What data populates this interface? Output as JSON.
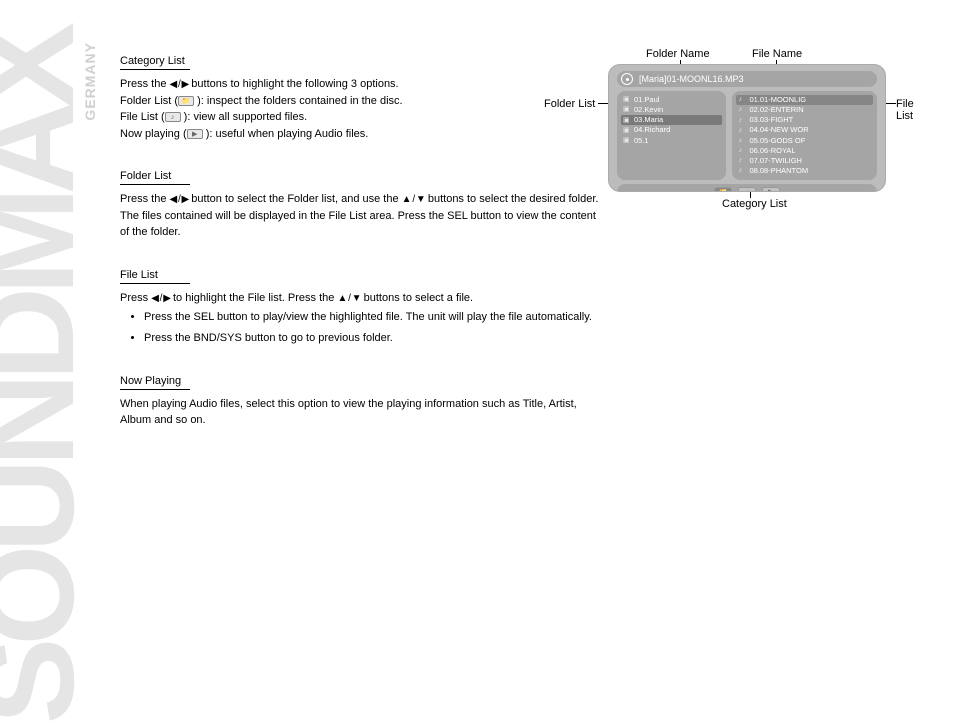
{
  "watermark": {
    "brand": "SOUNDMAX",
    "country": "GERMANY"
  },
  "sections": {
    "category": {
      "title": "Category List",
      "line1_pre": "Press the ",
      "line1_post": " buttons to highlight the following 3 options.",
      "opt1_label": "Folder List (",
      "opt1_post": " ): inspect the folders contained in the disc.",
      "opt2_label": "File List (",
      "opt2_post": " ): view all supported files.",
      "opt3_label": "Now playing (",
      "opt3_post": " ): useful when playing Audio files."
    },
    "folder": {
      "title": "Folder List",
      "pre": "Press the ",
      "mid": " button to select the Folder list, and use the ",
      "post": " buttons to select the desired folder. The files contained will be displayed in the File List area. Press the SEL button to view the content of the folder."
    },
    "file": {
      "title": "File List",
      "pre": "Press ",
      "mid": " to highlight the File list. Press the ",
      "post": " buttons to select a file.",
      "b1": "Press the SEL button to play/view the highlighted file. The unit will play the file automatically.",
      "b2": "Press the BND/SYS button to go to previous folder."
    },
    "now": {
      "title": "Now Playing",
      "body": "When playing Audio files, select this option to view the playing information such as Title, Artist, Album and so on."
    },
    "arrows_lr": "◀ / ▶",
    "arrows_ud": "▲ / ▼"
  },
  "figure": {
    "labels": {
      "folderName": "Folder Name",
      "fileName": "File Name",
      "folderList": "Folder List",
      "fileList": "File List",
      "categoryList": "Category List"
    },
    "title": "[Maria]01-MOONL16.MP3",
    "folders": [
      "01.Paul",
      "02.Kevin",
      "03.Maria",
      "04.Richard",
      "05.1"
    ],
    "selectedFolderIndex": 2,
    "files": [
      "01.01-MOONLIG",
      "02.02-ENTERIN",
      "03.03-FIGHT",
      "04.04-NEW WOR",
      "05.05-GODS OF",
      "06.06-ROYAL",
      "07.07-TWILIGH",
      "08.08-PHANTOM"
    ],
    "selectedFileIndex": 0
  }
}
